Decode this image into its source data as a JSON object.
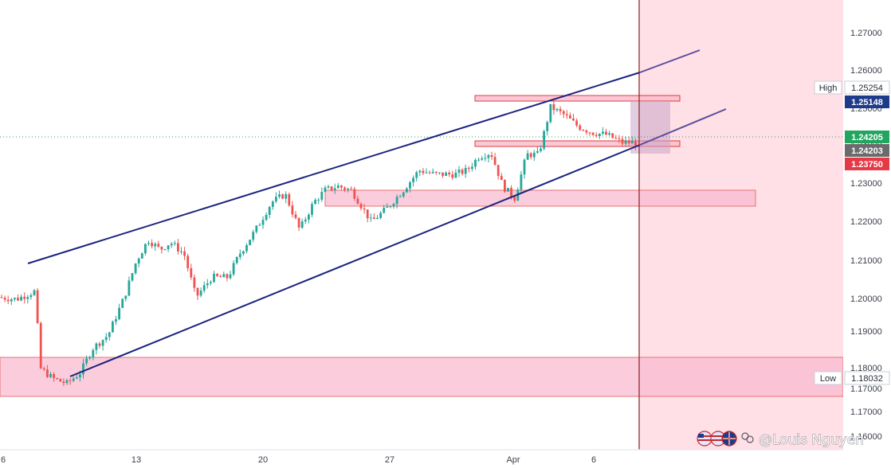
{
  "chart_data": {
    "type": "candlestick",
    "y_axis": {
      "ticks": [
        "1.27000",
        "1.26000",
        "1.25000",
        "1.24000",
        "1.23000",
        "1.22000",
        "1.21000",
        "1.20000",
        "1.19000",
        "1.18000",
        "1.17000",
        "1.17000",
        "1.16000"
      ],
      "range": [
        1.1645,
        1.278
      ]
    },
    "x_axis": {
      "ticks": [
        "6",
        "13",
        "20",
        "27",
        "Apr",
        "6"
      ]
    },
    "price_tags": {
      "high_label": "High",
      "high_value": "1.25254",
      "tag_1": "1.25148",
      "tag_2": "1.24205",
      "tag_3": "1.24203",
      "tag_4": "1.23750",
      "low_label": "Low",
      "low_value": "1.18032"
    },
    "colors": {
      "bull": "#26a69a",
      "bear": "#ef5350",
      "channel": "#1a237e",
      "zone_fill": "#f8bbd0",
      "zone_stroke": "#e53935",
      "forecast_bg": "#ffe0e6",
      "high_tag": "#1e3a8a",
      "last_tag": "#22a55e",
      "mid_tag": "#6b6b6b",
      "low_tag": "#e53945"
    },
    "annotations": {
      "watermark": "@Louis Nguyen"
    }
  }
}
